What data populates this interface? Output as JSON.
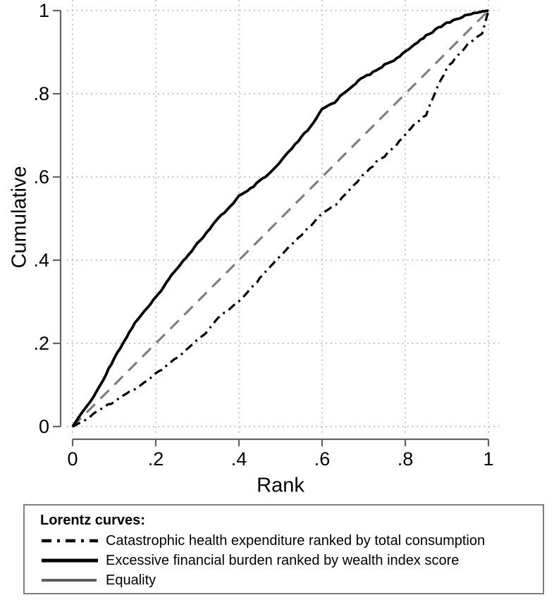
{
  "chart_data": {
    "type": "line",
    "title": "",
    "xlabel": "Rank",
    "ylabel": "Cumulative",
    "xlim": [
      0,
      1
    ],
    "ylim": [
      0,
      1
    ],
    "xticks": [
      0,
      0.2,
      0.4,
      0.6,
      0.8,
      1
    ],
    "yticks": [
      0,
      0.2,
      0.4,
      0.6,
      0.8,
      1
    ],
    "xtick_labels": [
      "0",
      ".2",
      ".4",
      ".6",
      ".8",
      "1"
    ],
    "ytick_labels": [
      "0",
      ".2",
      ".4",
      ".6",
      ".8",
      "1"
    ],
    "grid": "dotted",
    "legend_position": "bottom-box",
    "legend_title": "Lorentz curves:",
    "series": [
      {
        "name": "Catastrophic health expenditure ranked by total consumption",
        "style": "dash-dot",
        "color": "#000000",
        "width": 3.2,
        "noisy": true,
        "x": [
          0,
          0.03,
          0.05,
          0.07,
          0.1,
          0.13,
          0.15,
          0.18,
          0.2,
          0.23,
          0.25,
          0.29,
          0.32,
          0.35,
          0.38,
          0.41,
          0.45,
          0.49,
          0.52,
          0.55,
          0.58,
          0.6,
          0.62,
          0.64,
          0.67,
          0.7,
          0.73,
          0.75,
          0.78,
          0.8,
          0.82,
          0.85,
          0.87,
          0.9,
          0.92,
          0.95,
          0.97,
          0.985,
          1
        ],
        "y": [
          0,
          0.015,
          0.03,
          0.045,
          0.06,
          0.08,
          0.09,
          0.11,
          0.127,
          0.15,
          0.165,
          0.2,
          0.225,
          0.26,
          0.285,
          0.31,
          0.355,
          0.4,
          0.43,
          0.46,
          0.49,
          0.512,
          0.525,
          0.54,
          0.575,
          0.605,
          0.635,
          0.65,
          0.68,
          0.7,
          0.725,
          0.75,
          0.8,
          0.861,
          0.885,
          0.918,
          0.935,
          0.945,
          1
        ]
      },
      {
        "name": "Excessive financial burden ranked by wealth index score",
        "style": "solid",
        "color": "#000000",
        "width": 3.8,
        "noisy": true,
        "x": [
          0,
          0.02,
          0.05,
          0.08,
          0.1,
          0.13,
          0.15,
          0.18,
          0.2,
          0.225,
          0.25,
          0.28,
          0.3,
          0.33,
          0.35,
          0.38,
          0.4,
          0.42,
          0.45,
          0.47,
          0.49,
          0.52,
          0.55,
          0.58,
          0.6,
          0.63,
          0.65,
          0.68,
          0.7,
          0.73,
          0.75,
          0.78,
          0.8,
          0.83,
          0.85,
          0.88,
          0.9,
          0.93,
          0.95,
          0.98,
          1
        ],
        "y": [
          0,
          0.03,
          0.07,
          0.125,
          0.165,
          0.215,
          0.25,
          0.285,
          0.31,
          0.345,
          0.38,
          0.415,
          0.44,
          0.475,
          0.5,
          0.53,
          0.554,
          0.565,
          0.59,
          0.605,
          0.625,
          0.66,
          0.695,
          0.73,
          0.763,
          0.78,
          0.8,
          0.825,
          0.84,
          0.855,
          0.87,
          0.885,
          0.9,
          0.925,
          0.94,
          0.958,
          0.97,
          0.982,
          0.99,
          0.997,
          1
        ]
      },
      {
        "name": "Equality",
        "style": "dashed",
        "color": "#7a7a7a",
        "width": 3,
        "noisy": false,
        "x": [
          0,
          1
        ],
        "y": [
          0,
          1
        ]
      }
    ]
  },
  "colors": {
    "curve_black": "#000000",
    "equality_gray": "#7a7a7a",
    "legend_equality_gray": "#5e5e5e",
    "axis_gray": "#636363",
    "grid_gray": "#a3a3a3",
    "legend_border": "#7f7f7f",
    "background": "#ffffff"
  }
}
